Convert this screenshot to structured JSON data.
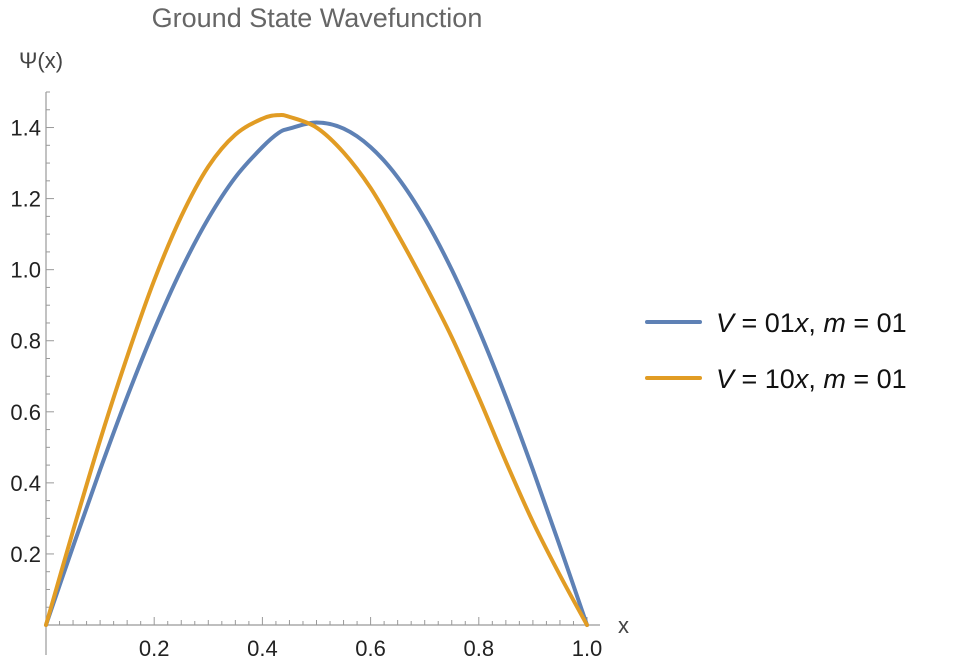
{
  "chart_data": {
    "type": "line",
    "title": "Ground State Wavefunction",
    "xlabel": "x",
    "ylabel": "Ψ(x)",
    "xlim": [
      0,
      1
    ],
    "ylim": [
      0,
      1.5
    ],
    "x_ticks": [
      0.2,
      0.4,
      0.6,
      0.8,
      1.0
    ],
    "x_tick_labels": [
      "0.2",
      "0.4",
      "0.6",
      "0.8",
      "1.0"
    ],
    "y_ticks": [
      0.2,
      0.4,
      0.6,
      0.8,
      1.0,
      1.2,
      1.4
    ],
    "y_tick_labels": [
      "0.2",
      "0.4",
      "0.6",
      "0.8",
      "1.0",
      "1.2",
      "1.4"
    ],
    "grid": false,
    "legend_position": "right",
    "x": [
      0.0,
      0.05,
      0.1,
      0.15,
      0.2,
      0.25,
      0.3,
      0.35,
      0.4,
      0.43,
      0.45,
      0.5,
      0.55,
      0.6,
      0.65,
      0.7,
      0.75,
      0.8,
      0.85,
      0.9,
      0.95,
      1.0
    ],
    "series": [
      {
        "name_parts": {
          "a": "V",
          "b": " = 01",
          "c": "x",
          "d": ", ",
          "e": "m",
          "f": " = 01"
        },
        "color": "#5e81b5",
        "values": [
          0.0,
          0.221,
          0.437,
          0.642,
          0.831,
          1.0,
          1.144,
          1.26,
          1.345,
          1.385,
          1.397,
          1.414,
          1.397,
          1.345,
          1.26,
          1.144,
          1.0,
          0.831,
          0.642,
          0.437,
          0.221,
          0.0
        ]
      },
      {
        "name_parts": {
          "a": "V",
          "b": " = 10",
          "c": "x",
          "d": ", ",
          "e": "m",
          "f": " = 01"
        },
        "color": "#e19c24",
        "values": [
          0.0,
          0.265,
          0.52,
          0.755,
          0.97,
          1.15,
          1.29,
          1.38,
          1.425,
          1.435,
          1.43,
          1.4,
          1.33,
          1.23,
          1.1,
          0.96,
          0.81,
          0.64,
          0.46,
          0.29,
          0.14,
          0.0
        ]
      }
    ]
  }
}
